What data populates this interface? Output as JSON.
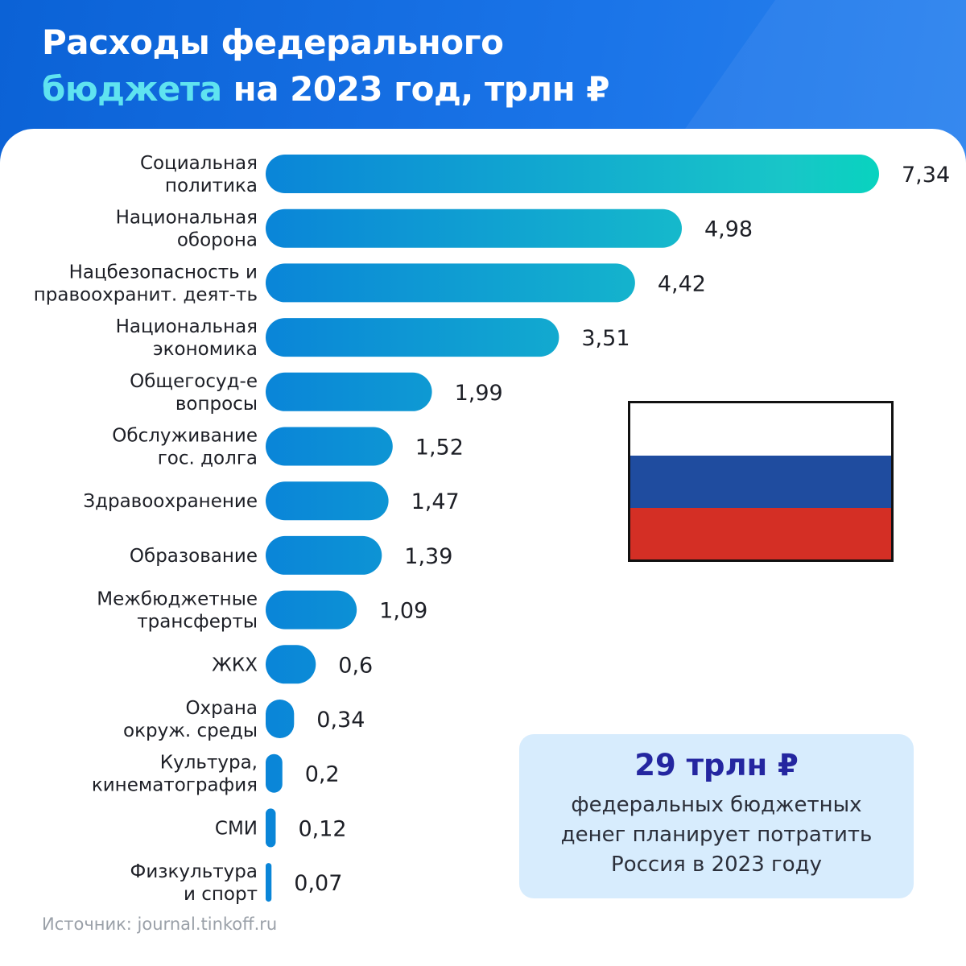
{
  "header": {
    "title_line1": "Расходы федерального",
    "title_highlight": "бюджета",
    "title_line2_rest": " на 2023 год, трлн ₽"
  },
  "chart_data": {
    "type": "bar",
    "orientation": "horizontal",
    "title": "Расходы федерального бюджета на 2023 год, трлн ₽",
    "categories": [
      "Социальная\nполитика",
      "Национальная\nоборона",
      "Нацбезопасность и\nправоохранит. деят-ть",
      "Национальная\nэкономика",
      "Общегосуд-е\nвопросы",
      "Обслуживание\nгос. долга",
      "Здравоохранение",
      "Образование",
      "Межбюджетные\nтрансферты",
      "ЖКХ",
      "Охрана\nокруж. среды",
      "Культура,\nкинематография",
      "СМИ",
      "Физкультура\nи спорт"
    ],
    "values": [
      7.34,
      4.98,
      4.42,
      3.51,
      1.99,
      1.52,
      1.47,
      1.39,
      1.09,
      0.6,
      0.34,
      0.2,
      0.12,
      0.07
    ],
    "value_labels": [
      "7,34",
      "4,98",
      "4,42",
      "3,51",
      "1,99",
      "1,52",
      "1,47",
      "1,39",
      "1,09",
      "0,6",
      "0,34",
      "0,2",
      "0,12",
      "0,07"
    ],
    "xlim": [
      0,
      7.34
    ],
    "grid": false,
    "colors": {
      "bar_start": "#0a85d8",
      "bar_end": "#18c6c8",
      "bar_end_top": "#08d3bf"
    }
  },
  "flag": {
    "icon": "russia-flag-icon",
    "colors": [
      "#ffffff",
      "#1f4c9f",
      "#d42f25"
    ]
  },
  "total": {
    "value": "29 трлн ₽",
    "line1": "федеральных бюджетных",
    "line2": "денег планирует потратить",
    "line3": "Россия в 2023 году"
  },
  "source": "Источник: journal.tinkoff.ru"
}
